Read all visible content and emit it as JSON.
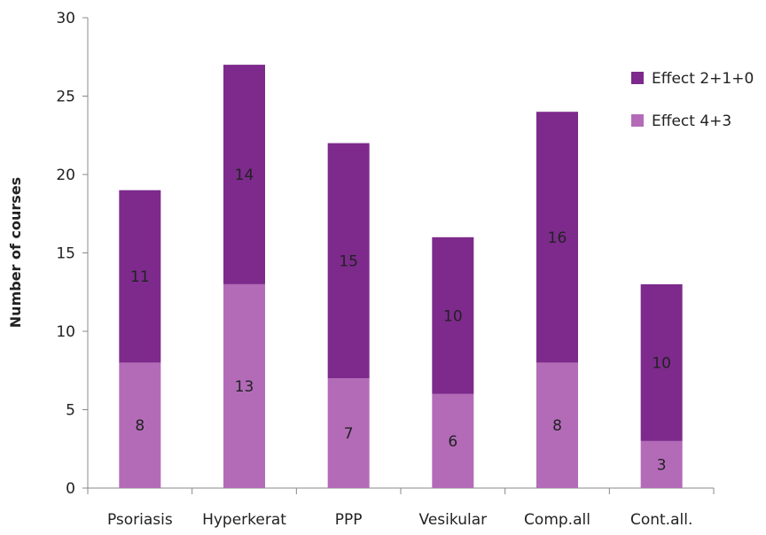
{
  "chart_data": {
    "type": "bar",
    "stacked": true,
    "categories": [
      "Psoriasis",
      "Hyperkerat",
      "PPP",
      "Vesikular",
      "Comp.all",
      "Cont.all."
    ],
    "series": [
      {
        "name": "Effect 4+3",
        "values": [
          8,
          13,
          7,
          6,
          8,
          3
        ],
        "color": "#b36bb8"
      },
      {
        "name": "Effect 2+1+0",
        "values": [
          11,
          14,
          15,
          10,
          16,
          10
        ],
        "color": "#7d2a8c"
      }
    ],
    "title": "",
    "xlabel": "",
    "ylabel": "Number of courses",
    "ylim": [
      0,
      30
    ],
    "yticks": [
      0,
      5,
      10,
      15,
      20,
      25,
      30
    ],
    "grid": false,
    "legend_position": "top-right"
  }
}
